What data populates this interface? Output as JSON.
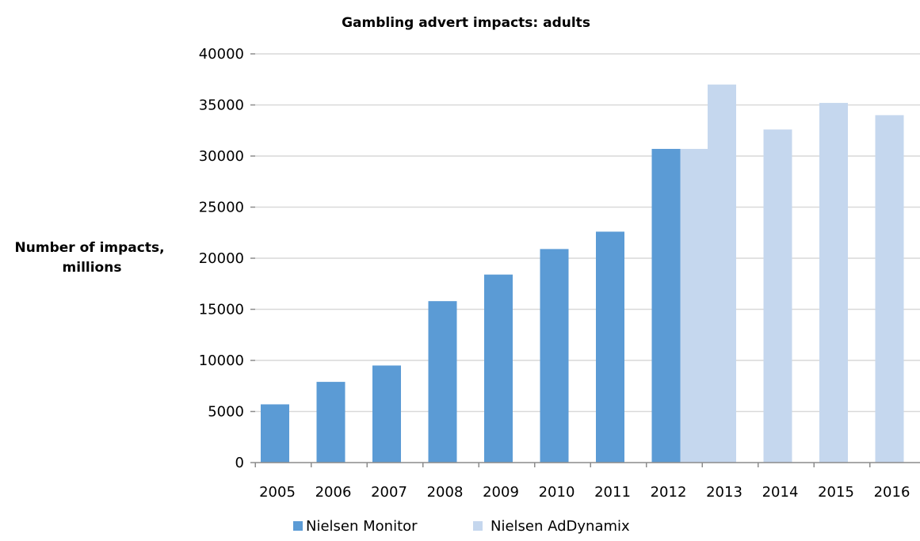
{
  "chart_data": {
    "type": "bar",
    "title": "Gambling advert impacts: adults",
    "ylabel": "Number of impacts, millions",
    "ylabel_lines": [
      "Number of impacts,",
      "millions"
    ],
    "xlabel": "",
    "categories": [
      "2005",
      "2006",
      "2007",
      "2008",
      "2009",
      "2010",
      "2011",
      "2012",
      "2013",
      "2014",
      "2015",
      "2016"
    ],
    "ylim": [
      0,
      40000
    ],
    "yticks": [
      0,
      5000,
      10000,
      15000,
      20000,
      25000,
      30000,
      35000,
      40000
    ],
    "grid": true,
    "legend_position": "bottom",
    "series": [
      {
        "name": "Nielsen Monitor",
        "color": "#5b9bd5",
        "values": [
          5700,
          7900,
          9500,
          15800,
          18400,
          20900,
          22600,
          30700,
          null,
          null,
          null,
          null
        ]
      },
      {
        "name": "Nielsen AdDynamix",
        "color": "#c5d7ee",
        "values": [
          null,
          null,
          null,
          null,
          null,
          null,
          null,
          30700,
          37000,
          32600,
          35200,
          34000
        ]
      }
    ]
  }
}
